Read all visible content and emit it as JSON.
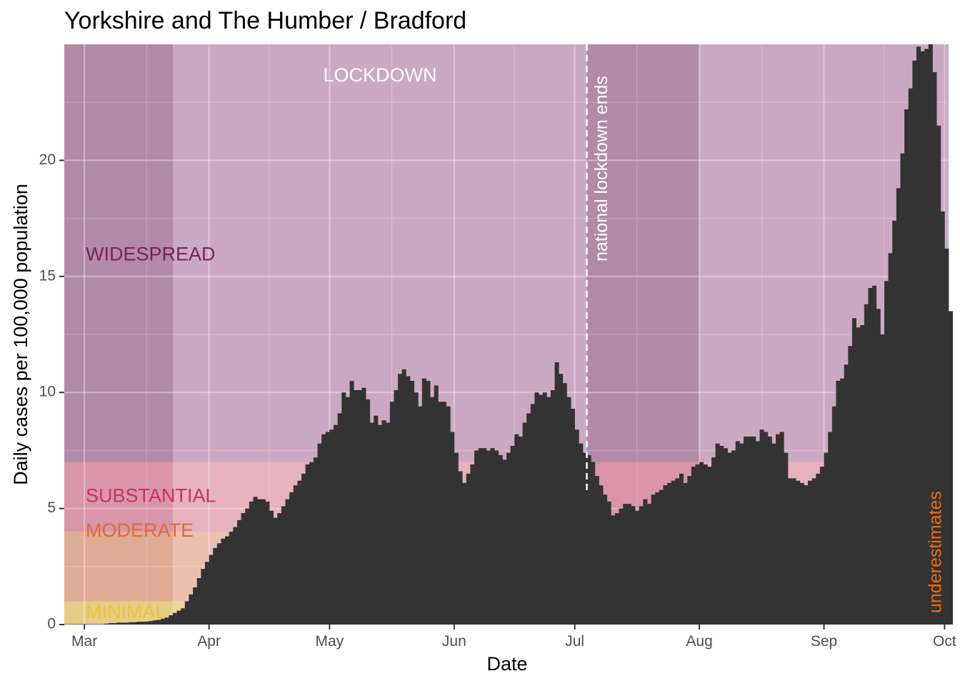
{
  "chart_data": {
    "type": "bar",
    "title": "Yorkshire and The Humber / Bradford",
    "xlabel": "Date",
    "ylabel": "Daily cases per 100,000 population",
    "x_start": "2020-02-25",
    "x_end": "2020-10-02",
    "xlim": [
      "2020-02-25",
      "2020-10-02"
    ],
    "ylim": [
      0,
      25
    ],
    "y_ticks": [
      0,
      5,
      10,
      15,
      20
    ],
    "x_ticks": [
      {
        "date": "2020-03-01",
        "label": "Mar"
      },
      {
        "date": "2020-04-01",
        "label": "Apr"
      },
      {
        "date": "2020-05-01",
        "label": "May"
      },
      {
        "date": "2020-06-01",
        "label": "Jun"
      },
      {
        "date": "2020-07-01",
        "label": "Jul"
      },
      {
        "date": "2020-08-01",
        "label": "Aug"
      },
      {
        "date": "2020-09-01",
        "label": "Sep"
      },
      {
        "date": "2020-10-01",
        "label": "Oct"
      }
    ],
    "grid": true,
    "colors": {
      "bars": "#333333",
      "panel": "#ebebeb",
      "widespread": "#cca9c2",
      "widespread_dark": "#b28aa6",
      "substantial": "#e6b2bd",
      "moderate": "#ebc0b1",
      "minimal": "#ecd79a",
      "widespread_text": "#7b2258",
      "substantial_text": "#cc3355",
      "moderate_text": "#e06a3a",
      "minimal_text": "#e7c43a",
      "underestimate_text": "#f06a10"
    },
    "bands": [
      {
        "label": "MINIMAL",
        "ymin": 0,
        "ymax": 1
      },
      {
        "label": "MODERATE",
        "ymin": 1,
        "ymax": 4
      },
      {
        "label": "SUBSTANTIAL",
        "ymin": 4,
        "ymax": 7
      },
      {
        "label": "WIDESPREAD",
        "ymin": 7,
        "ymax": 25
      }
    ],
    "shaded_periods": [
      {
        "from": "2020-02-25",
        "to": "2020-03-23"
      },
      {
        "from": "2020-07-04",
        "to": "2020-08-01"
      }
    ],
    "lockdown_label": "LOCKDOWN",
    "event": {
      "date": "2020-07-04",
      "label": "national lockdown ends"
    },
    "underestimate_label": "underestimates",
    "values": [
      0.02,
      0.02,
      0.02,
      0.02,
      0.02,
      0.02,
      0.02,
      0.02,
      0.02,
      0.02,
      0.04,
      0.06,
      0.06,
      0.08,
      0.08,
      0.08,
      0.1,
      0.1,
      0.12,
      0.12,
      0.13,
      0.15,
      0.18,
      0.2,
      0.25,
      0.3,
      0.4,
      0.5,
      0.6,
      0.7,
      1.0,
      1.3,
      1.6,
      2.0,
      2.4,
      2.7,
      3.0,
      3.3,
      3.5,
      3.7,
      3.8,
      4.0,
      4.2,
      4.5,
      4.8,
      5.0,
      5.3,
      5.5,
      5.4,
      5.4,
      5.3,
      4.9,
      4.6,
      4.8,
      5.1,
      5.4,
      5.7,
      6.0,
      6.2,
      6.5,
      6.9,
      7.0,
      7.2,
      7.8,
      8.2,
      8.3,
      8.4,
      8.6,
      9.1,
      10.0,
      9.8,
      10.5,
      10.1,
      10.1,
      10.2,
      9.7,
      8.7,
      9.0,
      8.6,
      8.8,
      8.7,
      9.6,
      10.1,
      10.8,
      11.0,
      10.7,
      10.5,
      10.0,
      9.4,
      10.6,
      10.5,
      9.8,
      10.3,
      9.6,
      9.6,
      9.4,
      8.3,
      7.4,
      6.6,
      6.1,
      6.5,
      6.9,
      7.5,
      7.6,
      7.6,
      7.5,
      7.6,
      7.5,
      7.3,
      7.1,
      7.4,
      7.7,
      8.2,
      8.1,
      8.7,
      9.1,
      9.5,
      10.0,
      9.9,
      10.0,
      9.8,
      10.1,
      11.3,
      10.8,
      10.4,
      9.8,
      9.3,
      8.4,
      7.8,
      7.4,
      7.3,
      7.0,
      6.4,
      6.0,
      5.6,
      5.3,
      4.7,
      4.8,
      5.0,
      5.2,
      5.2,
      5.1,
      4.9,
      5.1,
      5.4,
      5.2,
      5.6,
      5.7,
      5.8,
      6.0,
      6.1,
      6.2,
      6.3,
      6.5,
      6.1,
      6.4,
      6.8,
      6.9,
      7.0,
      6.9,
      6.8,
      7.2,
      7.8,
      7.7,
      7.6,
      7.4,
      7.5,
      7.9,
      7.8,
      8.1,
      8.1,
      8.1,
      7.9,
      8.4,
      8.3,
      8.1,
      7.8,
      8.2,
      8.3,
      7.4,
      6.3,
      6.3,
      6.2,
      6.1,
      6.0,
      6.2,
      6.3,
      6.5,
      6.8,
      7.4,
      8.3,
      9.4,
      10.5,
      10.6,
      11.2,
      12.0,
      13.2,
      12.8,
      12.9,
      13.8,
      14.5,
      14.6,
      13.6,
      12.5,
      14.8,
      16.0,
      17.4,
      18.8,
      20.3,
      22.2,
      23.1,
      24.3,
      24.9,
      24.7,
      24.8,
      25.2,
      23.8,
      21.5,
      17.8,
      16.2,
      13.5
    ]
  }
}
